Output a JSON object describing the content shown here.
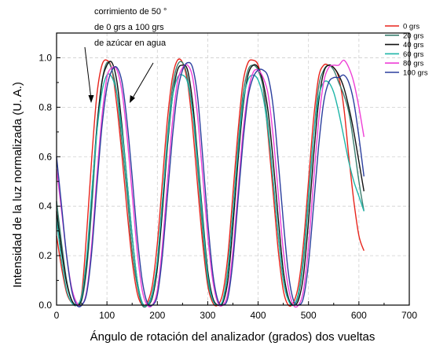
{
  "chart_data": {
    "type": "line",
    "xlabel": "Ángulo de rotación del analizador (grados) dos vueltas",
    "ylabel": "Intensidad de la luz normalizada (U. A.)",
    "xlim": [
      0,
      700
    ],
    "ylim": [
      0,
      1.1
    ],
    "xticks": [
      "0",
      "100",
      "200",
      "300",
      "400",
      "500",
      "600",
      "700"
    ],
    "yticks": [
      "0.0",
      "0.2",
      "0.4",
      "0.6",
      "0.8",
      "1.0"
    ],
    "grid": true,
    "legend_position": "top-right",
    "annotation": [
      "corrimiento de 50 °",
      "de 0 grs a 100 grs",
      "de azúcar en agua"
    ],
    "series": [
      {
        "name": "0 grs",
        "color": "#e8241c",
        "x": [
          0,
          10,
          20,
          30,
          40,
          50,
          60,
          70,
          80,
          90,
          100,
          110,
          120,
          130,
          140,
          150,
          160,
          170,
          180,
          190,
          200,
          210,
          220,
          230,
          240,
          250,
          260,
          270,
          280,
          290,
          300,
          310,
          320,
          330,
          340,
          350,
          360,
          370,
          380,
          390,
          400,
          410,
          420,
          430,
          440,
          450,
          460,
          470,
          480,
          490,
          500,
          510,
          520,
          530,
          540,
          550,
          560,
          570,
          580,
          590,
          600,
          610
        ],
        "y": [
          0.28,
          0.15,
          0.05,
          0.01,
          0.0,
          0.05,
          0.3,
          0.6,
          0.85,
          0.97,
          0.99,
          0.95,
          0.8,
          0.6,
          0.38,
          0.18,
          0.05,
          0.0,
          0.01,
          0.08,
          0.25,
          0.5,
          0.75,
          0.92,
          0.99,
          0.98,
          0.9,
          0.72,
          0.48,
          0.25,
          0.08,
          0.01,
          0.0,
          0.05,
          0.2,
          0.45,
          0.7,
          0.9,
          0.98,
          0.99,
          0.97,
          0.88,
          0.68,
          0.45,
          0.22,
          0.06,
          0.0,
          0.01,
          0.08,
          0.25,
          0.5,
          0.75,
          0.92,
          0.97,
          0.97,
          0.96,
          0.92,
          0.8,
          0.6,
          0.42,
          0.28,
          0.22
        ]
      },
      {
        "name": "20 grs",
        "color": "#3a7f6f",
        "x": [
          0,
          10,
          20,
          30,
          40,
          50,
          60,
          70,
          80,
          90,
          100,
          110,
          120,
          130,
          140,
          150,
          160,
          170,
          180,
          190,
          200,
          210,
          220,
          230,
          240,
          250,
          260,
          270,
          280,
          290,
          300,
          310,
          320,
          330,
          340,
          350,
          360,
          370,
          380,
          390,
          400,
          410,
          420,
          430,
          440,
          450,
          460,
          470,
          480,
          490,
          500,
          510,
          520,
          530,
          540,
          550,
          560,
          570,
          580,
          590,
          600,
          610
        ],
        "y": [
          0.42,
          0.25,
          0.1,
          0.02,
          0.0,
          0.02,
          0.15,
          0.4,
          0.7,
          0.9,
          0.98,
          0.95,
          0.85,
          0.65,
          0.45,
          0.22,
          0.08,
          0.0,
          0.0,
          0.05,
          0.18,
          0.42,
          0.68,
          0.88,
          0.97,
          0.98,
          0.92,
          0.78,
          0.55,
          0.3,
          0.1,
          0.02,
          0.0,
          0.02,
          0.15,
          0.38,
          0.64,
          0.85,
          0.95,
          0.97,
          0.95,
          0.88,
          0.72,
          0.5,
          0.28,
          0.1,
          0.02,
          0.0,
          0.04,
          0.18,
          0.42,
          0.68,
          0.88,
          0.95,
          0.97,
          0.95,
          0.9,
          0.85,
          0.78,
          0.65,
          0.5,
          0.38
        ]
      },
      {
        "name": "40 grs",
        "color": "#111111",
        "x": [
          0,
          10,
          20,
          30,
          40,
          50,
          60,
          70,
          80,
          90,
          100,
          110,
          120,
          130,
          140,
          150,
          160,
          170,
          180,
          190,
          200,
          210,
          220,
          230,
          240,
          250,
          260,
          270,
          280,
          290,
          300,
          310,
          320,
          330,
          340,
          350,
          360,
          370,
          380,
          390,
          400,
          410,
          420,
          430,
          440,
          450,
          460,
          470,
          480,
          490,
          500,
          510,
          520,
          530,
          540,
          550,
          560,
          570,
          580,
          590,
          600,
          610
        ],
        "y": [
          0.38,
          0.22,
          0.09,
          0.02,
          0.0,
          0.03,
          0.18,
          0.45,
          0.72,
          0.9,
          0.97,
          0.98,
          0.9,
          0.72,
          0.5,
          0.28,
          0.1,
          0.01,
          0.0,
          0.03,
          0.15,
          0.38,
          0.64,
          0.84,
          0.95,
          0.97,
          0.95,
          0.82,
          0.6,
          0.36,
          0.14,
          0.03,
          0.0,
          0.01,
          0.1,
          0.32,
          0.58,
          0.8,
          0.93,
          0.97,
          0.96,
          0.9,
          0.78,
          0.58,
          0.35,
          0.14,
          0.03,
          0.0,
          0.02,
          0.12,
          0.34,
          0.6,
          0.82,
          0.94,
          0.97,
          0.96,
          0.93,
          0.88,
          0.8,
          0.7,
          0.58,
          0.46
        ]
      },
      {
        "name": "60 grs",
        "color": "#1fb5a8",
        "x": [
          0,
          10,
          20,
          30,
          40,
          50,
          60,
          70,
          80,
          90,
          100,
          110,
          120,
          130,
          140,
          150,
          160,
          170,
          180,
          190,
          200,
          210,
          220,
          230,
          240,
          250,
          260,
          270,
          280,
          290,
          300,
          310,
          320,
          330,
          340,
          350,
          360,
          370,
          380,
          390,
          400,
          410,
          420,
          430,
          440,
          450,
          460,
          470,
          480,
          490,
          500,
          510,
          520,
          530,
          540,
          550,
          560,
          570,
          580,
          590,
          600,
          610
        ],
        "y": [
          0.35,
          0.18,
          0.06,
          0.01,
          0.0,
          0.04,
          0.2,
          0.46,
          0.7,
          0.86,
          0.93,
          0.92,
          0.85,
          0.7,
          0.5,
          0.28,
          0.1,
          0.01,
          0.0,
          0.04,
          0.18,
          0.42,
          0.66,
          0.84,
          0.92,
          0.93,
          0.9,
          0.78,
          0.58,
          0.34,
          0.12,
          0.02,
          0.0,
          0.02,
          0.14,
          0.38,
          0.62,
          0.82,
          0.91,
          0.93,
          0.91,
          0.84,
          0.7,
          0.5,
          0.28,
          0.1,
          0.02,
          0.0,
          0.05,
          0.2,
          0.44,
          0.68,
          0.84,
          0.9,
          0.9,
          0.86,
          0.78,
          0.68,
          0.58,
          0.5,
          0.44,
          0.38
        ]
      },
      {
        "name": "80 grs",
        "color": "#ee3fd6",
        "x": [
          0,
          10,
          20,
          30,
          40,
          50,
          60,
          70,
          80,
          90,
          100,
          110,
          120,
          130,
          140,
          150,
          160,
          170,
          180,
          190,
          200,
          210,
          220,
          230,
          240,
          250,
          260,
          270,
          280,
          290,
          300,
          310,
          320,
          330,
          340,
          350,
          360,
          370,
          380,
          390,
          400,
          410,
          420,
          430,
          440,
          450,
          460,
          470,
          480,
          490,
          500,
          510,
          520,
          530,
          540,
          550,
          560,
          570,
          580,
          590,
          600,
          610
        ],
        "y": [
          0.55,
          0.38,
          0.2,
          0.07,
          0.01,
          0.0,
          0.06,
          0.25,
          0.52,
          0.76,
          0.92,
          0.96,
          0.95,
          0.86,
          0.68,
          0.45,
          0.22,
          0.06,
          0.0,
          0.0,
          0.06,
          0.24,
          0.5,
          0.74,
          0.9,
          0.96,
          0.97,
          0.92,
          0.76,
          0.52,
          0.28,
          0.1,
          0.01,
          0.0,
          0.05,
          0.22,
          0.46,
          0.7,
          0.86,
          0.94,
          0.95,
          0.92,
          0.85,
          0.68,
          0.45,
          0.22,
          0.07,
          0.0,
          0.0,
          0.06,
          0.24,
          0.5,
          0.74,
          0.9,
          0.96,
          0.97,
          0.97,
          0.99,
          0.96,
          0.9,
          0.8,
          0.68
        ]
      },
      {
        "name": "100 grs",
        "color": "#2b3f9e",
        "x": [
          0,
          10,
          20,
          30,
          40,
          50,
          60,
          70,
          80,
          90,
          100,
          110,
          120,
          130,
          140,
          150,
          160,
          170,
          180,
          190,
          200,
          210,
          220,
          230,
          240,
          250,
          260,
          270,
          280,
          290,
          300,
          310,
          320,
          330,
          340,
          350,
          360,
          370,
          380,
          390,
          400,
          410,
          420,
          430,
          440,
          450,
          460,
          470,
          480,
          490,
          500,
          510,
          520,
          530,
          540,
          550,
          560,
          570,
          580,
          590,
          600,
          610
        ],
        "y": [
          0.6,
          0.4,
          0.2,
          0.06,
          0.0,
          0.0,
          0.05,
          0.22,
          0.48,
          0.72,
          0.88,
          0.95,
          0.96,
          0.9,
          0.74,
          0.52,
          0.28,
          0.1,
          0.01,
          0.0,
          0.04,
          0.2,
          0.44,
          0.68,
          0.86,
          0.95,
          0.98,
          0.96,
          0.84,
          0.6,
          0.34,
          0.13,
          0.02,
          0.0,
          0.03,
          0.18,
          0.42,
          0.66,
          0.84,
          0.92,
          0.95,
          0.95,
          0.92,
          0.8,
          0.58,
          0.34,
          0.13,
          0.02,
          0.0,
          0.03,
          0.17,
          0.4,
          0.64,
          0.82,
          0.9,
          0.92,
          0.92,
          0.93,
          0.9,
          0.82,
          0.68,
          0.52
        ]
      }
    ]
  }
}
